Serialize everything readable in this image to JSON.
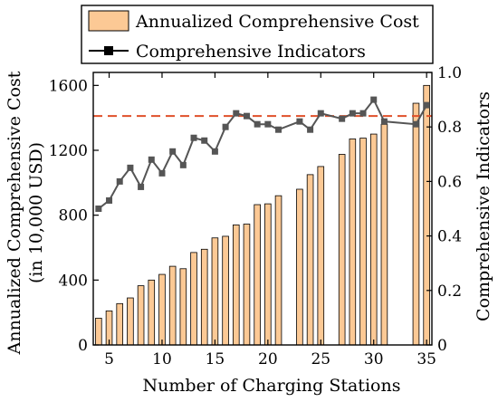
{
  "chart_data": {
    "type": "bar+line",
    "xlabel": "Number of Charging Stations",
    "ylabel_left_line1": "Annualized Comprehensive Cost",
    "ylabel_left_line2": "(in 10,000 USD)",
    "ylabel_right": "Comprehensive Indicators",
    "xlim": [
      3.5,
      35.5
    ],
    "ylim_left": [
      0,
      1680
    ],
    "ylim_right": [
      0,
      1.0
    ],
    "x_ticks": [
      "5",
      "10",
      "15",
      "20",
      "25",
      "30",
      "35"
    ],
    "y_left_ticks": [
      "0",
      "400",
      "800",
      "1200",
      "1600"
    ],
    "y_right_ticks": [
      "0",
      "0.2",
      "0.4",
      "0.6",
      "0.8",
      "1.0"
    ],
    "reference_line_right": 0.84,
    "legend": {
      "placement": "top",
      "bar_label": "Annualized Comprehensive Cost",
      "line_label": "Comprehensive Indicators"
    },
    "colors": {
      "bar_fill": "#fcc995",
      "bar_stroke": "#000000",
      "line": "#555555",
      "marker": "#555555",
      "reference": "#e0502a"
    },
    "bars": {
      "x": [
        4,
        5,
        6,
        7,
        8,
        9,
        10,
        11,
        12,
        13,
        14,
        15,
        16,
        17,
        18,
        19,
        20,
        21,
        23,
        24,
        25,
        27,
        28,
        29,
        30,
        31,
        34,
        35
      ],
      "values": [
        165,
        210,
        255,
        290,
        365,
        400,
        435,
        485,
        470,
        570,
        590,
        660,
        670,
        740,
        745,
        865,
        870,
        920,
        960,
        1050,
        1100,
        1175,
        1270,
        1275,
        1300,
        1360,
        1490,
        1600
      ]
    },
    "line": {
      "x": [
        4,
        5,
        6,
        7,
        8,
        9,
        10,
        11,
        12,
        13,
        14,
        15,
        16,
        17,
        18,
        19,
        20,
        21,
        23,
        24,
        25,
        27,
        28,
        29,
        30,
        31,
        34,
        35
      ],
      "values": [
        0.5,
        0.53,
        0.6,
        0.65,
        0.58,
        0.68,
        0.63,
        0.71,
        0.66,
        0.76,
        0.75,
        0.71,
        0.8,
        0.85,
        0.84,
        0.81,
        0.81,
        0.79,
        0.82,
        0.79,
        0.85,
        0.83,
        0.85,
        0.85,
        0.9,
        0.82,
        0.81,
        0.88
      ]
    }
  }
}
